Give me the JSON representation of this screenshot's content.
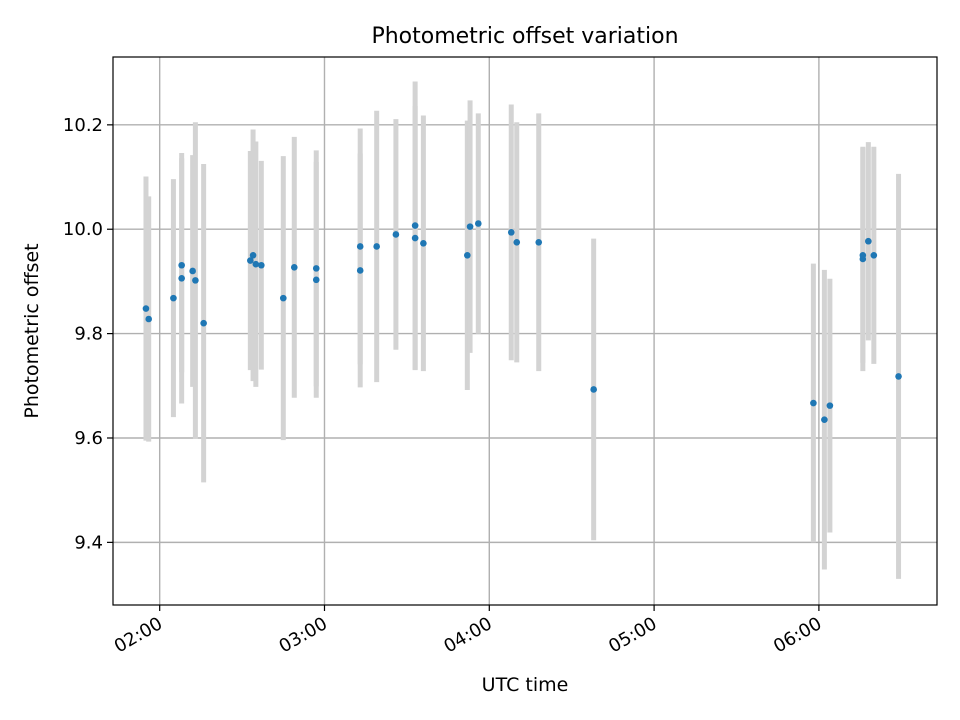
{
  "chart_data": {
    "type": "scatter",
    "title": "Photometric offset variation",
    "xlabel": "UTC time",
    "ylabel": "Photometric offset",
    "grid": true,
    "xlim": [
      "01:43",
      "06:43"
    ],
    "ylim": [
      9.28,
      10.33
    ],
    "xticks": [
      "02:00",
      "03:00",
      "04:00",
      "05:00",
      "06:00"
    ],
    "yticks": [
      9.4,
      9.6,
      9.8,
      10.0,
      10.2
    ],
    "ytick_labels": [
      "9.4",
      "9.6",
      "9.8",
      "10.0",
      "10.2"
    ],
    "colors": {
      "point": "#1f77b4",
      "errorbar": "#d3d3d3",
      "grid": "#b0b0b0"
    },
    "points": [
      {
        "x": "01:55",
        "y": 9.848,
        "err": 0.253
      },
      {
        "x": "01:56",
        "y": 9.828,
        "err": 0.235
      },
      {
        "x": "02:05",
        "y": 9.868,
        "err": 0.228
      },
      {
        "x": "02:08",
        "y": 9.931,
        "err": 0.205
      },
      {
        "x": "02:08",
        "y": 9.906,
        "err": 0.24
      },
      {
        "x": "02:12",
        "y": 9.92,
        "err": 0.222
      },
      {
        "x": "02:13",
        "y": 9.902,
        "err": 0.303
      },
      {
        "x": "02:16",
        "y": 9.82,
        "err": 0.305
      },
      {
        "x": "02:33",
        "y": 9.94,
        "err": 0.21
      },
      {
        "x": "02:34",
        "y": 9.95,
        "err": 0.241
      },
      {
        "x": "02:35",
        "y": 9.933,
        "err": 0.235
      },
      {
        "x": "02:37",
        "y": 9.931,
        "err": 0.2
      },
      {
        "x": "02:45",
        "y": 9.868,
        "err": 0.272
      },
      {
        "x": "02:49",
        "y": 9.927,
        "err": 0.25
      },
      {
        "x": "02:57",
        "y": 9.903,
        "err": 0.226
      },
      {
        "x": "02:57",
        "y": 9.925,
        "err": 0.226
      },
      {
        "x": "03:13",
        "y": 9.921,
        "err": 0.224
      },
      {
        "x": "03:13",
        "y": 9.967,
        "err": 0.226
      },
      {
        "x": "03:19",
        "y": 9.967,
        "err": 0.26
      },
      {
        "x": "03:26",
        "y": 9.99,
        "err": 0.221
      },
      {
        "x": "03:33",
        "y": 9.983,
        "err": 0.253
      },
      {
        "x": "03:33",
        "y": 10.007,
        "err": 0.276
      },
      {
        "x": "03:36",
        "y": 9.973,
        "err": 0.245
      },
      {
        "x": "03:52",
        "y": 9.95,
        "err": 0.258
      },
      {
        "x": "03:53",
        "y": 10.005,
        "err": 0.242
      },
      {
        "x": "03:56",
        "y": 10.011,
        "err": 0.211
      },
      {
        "x": "04:08",
        "y": 9.994,
        "err": 0.245
      },
      {
        "x": "04:10",
        "y": 9.975,
        "err": 0.23
      },
      {
        "x": "04:18",
        "y": 9.975,
        "err": 0.247
      },
      {
        "x": "04:38",
        "y": 9.693,
        "err": 0.289
      },
      {
        "x": "05:58",
        "y": 9.667,
        "err": 0.267
      },
      {
        "x": "06:02",
        "y": 9.635,
        "err": 0.287
      },
      {
        "x": "06:04",
        "y": 9.662,
        "err": 0.243
      },
      {
        "x": "06:16",
        "y": 9.943,
        "err": 0.215
      },
      {
        "x": "06:16",
        "y": 9.95,
        "err": 0.206
      },
      {
        "x": "06:18",
        "y": 9.977,
        "err": 0.19
      },
      {
        "x": "06:20",
        "y": 9.95,
        "err": 0.208
      },
      {
        "x": "06:29",
        "y": 9.718,
        "err": 0.388
      }
    ]
  }
}
